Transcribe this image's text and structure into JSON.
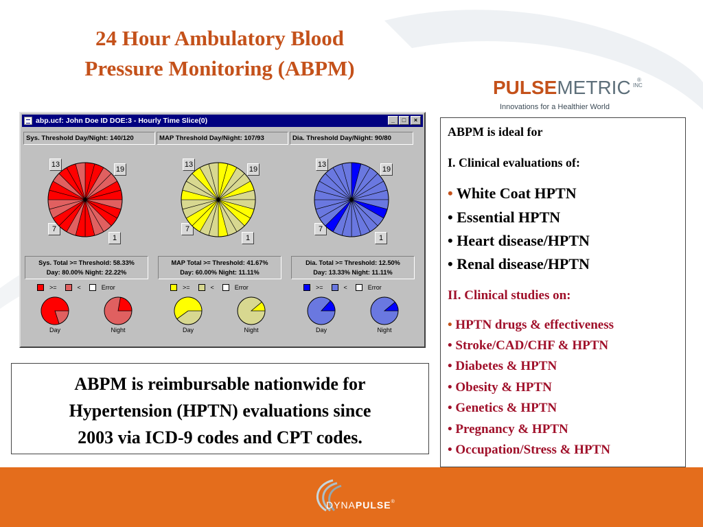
{
  "slide": {
    "title_line1": "24 Hour Ambulatory Blood",
    "title_line2": "Pressure Monitoring (ABPM)"
  },
  "logo": {
    "pulse": "PULSE",
    "metric": "METRIC",
    "reg": "®",
    "inc": "INC",
    "tagline": "Innovations for a Healthier World"
  },
  "window": {
    "title": "abp.ucf: John Doe ID DOE:3 - Hourly Time Slice(0)",
    "btn_min": "_",
    "btn_max": "□",
    "btn_close": "×",
    "hour_labels": [
      "13",
      "19",
      "7",
      "1"
    ],
    "panels": [
      {
        "threshold": "Sys. Threshold Day/Night: 140/120",
        "stat_line1": "Sys. Total >= Threshold: 58.33%",
        "stat_line2": "Day: 80.00%  Night: 22.22%",
        "color_high": "#ff0000",
        "color_low": "#e06060",
        "day_fraction": 0.8,
        "night_fraction": 0.2222
      },
      {
        "threshold": "MAP Threshold Day/Night: 107/93",
        "stat_line1": "MAP Total >= Threshold: 41.67%",
        "stat_line2": "Day: 60.00%  Night: 11.11%",
        "color_high": "#ffff00",
        "color_low": "#d8d890",
        "day_fraction": 0.6,
        "night_fraction": 0.1111
      },
      {
        "threshold": "Dia. Threshold Day/Night: 90/80",
        "stat_line1": "Dia. Total >= Threshold: 12.50%",
        "stat_line2": "Day: 13.33%  Night: 11.11%",
        "color_high": "#0000ff",
        "color_low": "#6a78e0",
        "day_fraction": 0.1333,
        "night_fraction": 0.1111
      }
    ],
    "legend": {
      "ge": ">=",
      "lt": "<",
      "error": "Error"
    },
    "mini_labels": {
      "day": "Day",
      "night": "Night"
    }
  },
  "right_box": {
    "heading": "ABPM is ideal for",
    "section1": "I. Clinical evaluations of:",
    "evaluations": [
      "White Coat HPTN",
      "Essential HPTN",
      "Heart disease/HPTN",
      "Renal disease/HPTN"
    ],
    "section2": "II. Clinical studies on:",
    "studies": [
      "HPTN drugs & effectiveness",
      "Stroke/CAD/CHF & HPTN",
      "Diabetes & HPTN",
      "Obesity & HPTN",
      "Genetics & HPTN",
      "Pregnancy & HPTN",
      "Occupation/Stress & HPTN"
    ],
    "bullet": "•"
  },
  "left_box": {
    "line1": "ABPM is reimbursable nationwide for",
    "line2": "Hypertension (HPTN) evaluations since",
    "line3": "2003 via ICD-9 codes and CPT codes."
  },
  "footer": {
    "brand_a": "DYNA",
    "brand_b": "PULSE",
    "brand_reg": "®"
  },
  "colors": {
    "title": "#c4511a",
    "footer": "#e46d1c",
    "study_text": "#a0102a"
  }
}
